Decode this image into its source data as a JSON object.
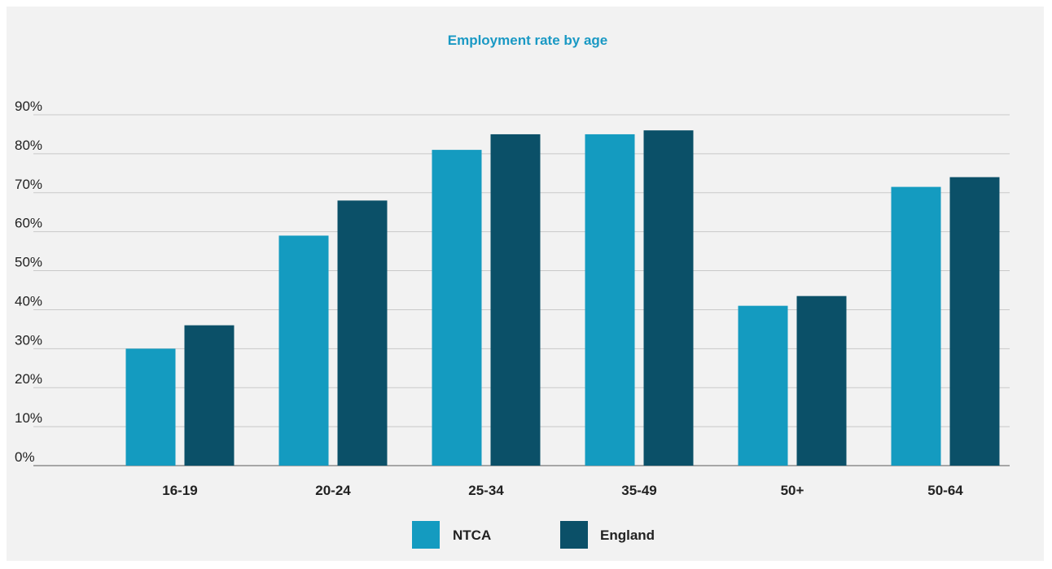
{
  "chart_data": {
    "type": "bar",
    "title": "Employment rate by age",
    "xlabel": "",
    "ylabel": "",
    "categories": [
      "16-19",
      "20-24",
      "25-34",
      "35-49",
      "50+",
      "50-64"
    ],
    "series": [
      {
        "name": "NTCA",
        "color": "#149bc0",
        "values": [
          30,
          59,
          81,
          85,
          41,
          71.5
        ]
      },
      {
        "name": "England",
        "color": "#0b5068",
        "values": [
          36,
          68,
          85,
          86,
          43.5,
          74
        ]
      }
    ],
    "ylim": [
      0,
      90
    ],
    "yticks": [
      "0%",
      "10%",
      "20%",
      "30%",
      "40%",
      "50%",
      "60%",
      "70%",
      "80%",
      "90%"
    ],
    "grid": true,
    "legend_position": "bottom-center",
    "title_color": "#1a99c4"
  }
}
